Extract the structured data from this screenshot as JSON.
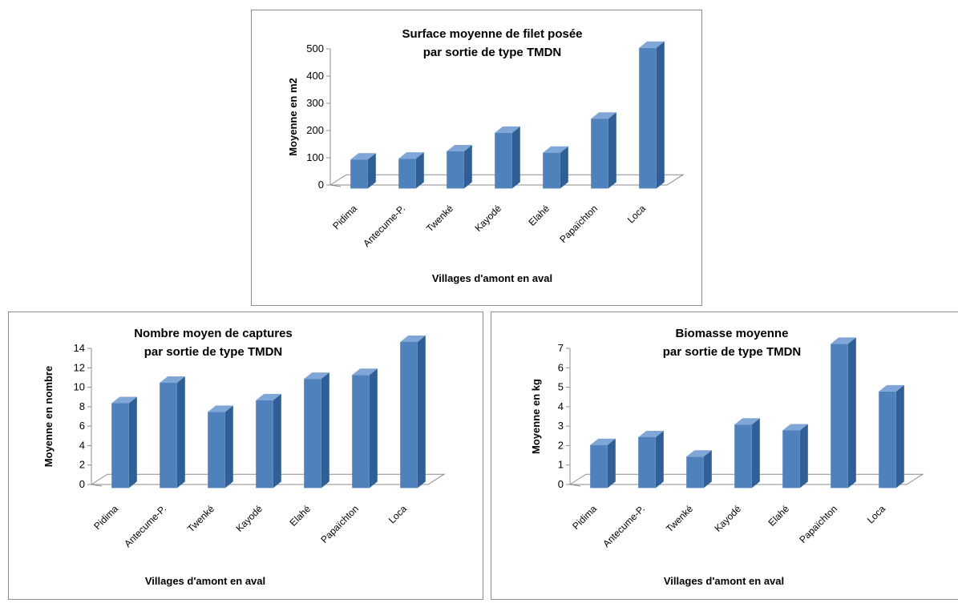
{
  "colors": {
    "bar_front": "#4f81bd",
    "bar_side": "#2f5f96",
    "bar_top": "#7fa6d6",
    "floor": "#ffffff",
    "axis": "#8c8c8c"
  },
  "chart_data": [
    {
      "type": "bar",
      "title_lines": [
        "Surface moyenne de filet posée",
        "par sortie de type TMDN"
      ],
      "xlabel": "Villages d'amont en aval",
      "ylabel": "Moyenne en m2",
      "ylim": [
        0,
        500
      ],
      "yticks": [
        0,
        100,
        200,
        300,
        400,
        500
      ],
      "grid": false,
      "categories": [
        "Pidima",
        "Antecume-P.",
        "Twenké",
        "Kayodé",
        "Elahé",
        "Papaïchton",
        "Loca"
      ],
      "values": [
        70,
        73,
        100,
        168,
        95,
        220,
        480
      ]
    },
    {
      "type": "bar",
      "title_lines": [
        "Nombre moyen de captures",
        "par sortie de type TMDN"
      ],
      "xlabel": "Villages d'amont en aval",
      "ylabel": "Moyenne en nombre",
      "ylim": [
        0,
        14
      ],
      "yticks": [
        0,
        2,
        4,
        6,
        8,
        10,
        12,
        14
      ],
      "grid": false,
      "categories": [
        "Pidima",
        "Antecume-P.",
        "Twenké",
        "Kayodé",
        "Elahé",
        "Papaïchton",
        "Loca"
      ],
      "values": [
        7.7,
        9.8,
        6.8,
        8.0,
        10.2,
        10.6,
        14.0
      ]
    },
    {
      "type": "bar",
      "title_lines": [
        "Biomasse moyenne",
        "par sortie de type TMDN"
      ],
      "xlabel": "Villages d'amont en aval",
      "ylabel": "Moyenne en kg",
      "ylim": [
        0,
        7
      ],
      "yticks": [
        0,
        1,
        2,
        3,
        4,
        5,
        6,
        7
      ],
      "grid": false,
      "categories": [
        "Pidima",
        "Antecume-P.",
        "Twenké",
        "Kayodé",
        "Elahé",
        "Papaïchton",
        "Loca"
      ],
      "values": [
        1.7,
        2.1,
        1.1,
        2.75,
        2.45,
        6.9,
        4.45
      ]
    }
  ]
}
